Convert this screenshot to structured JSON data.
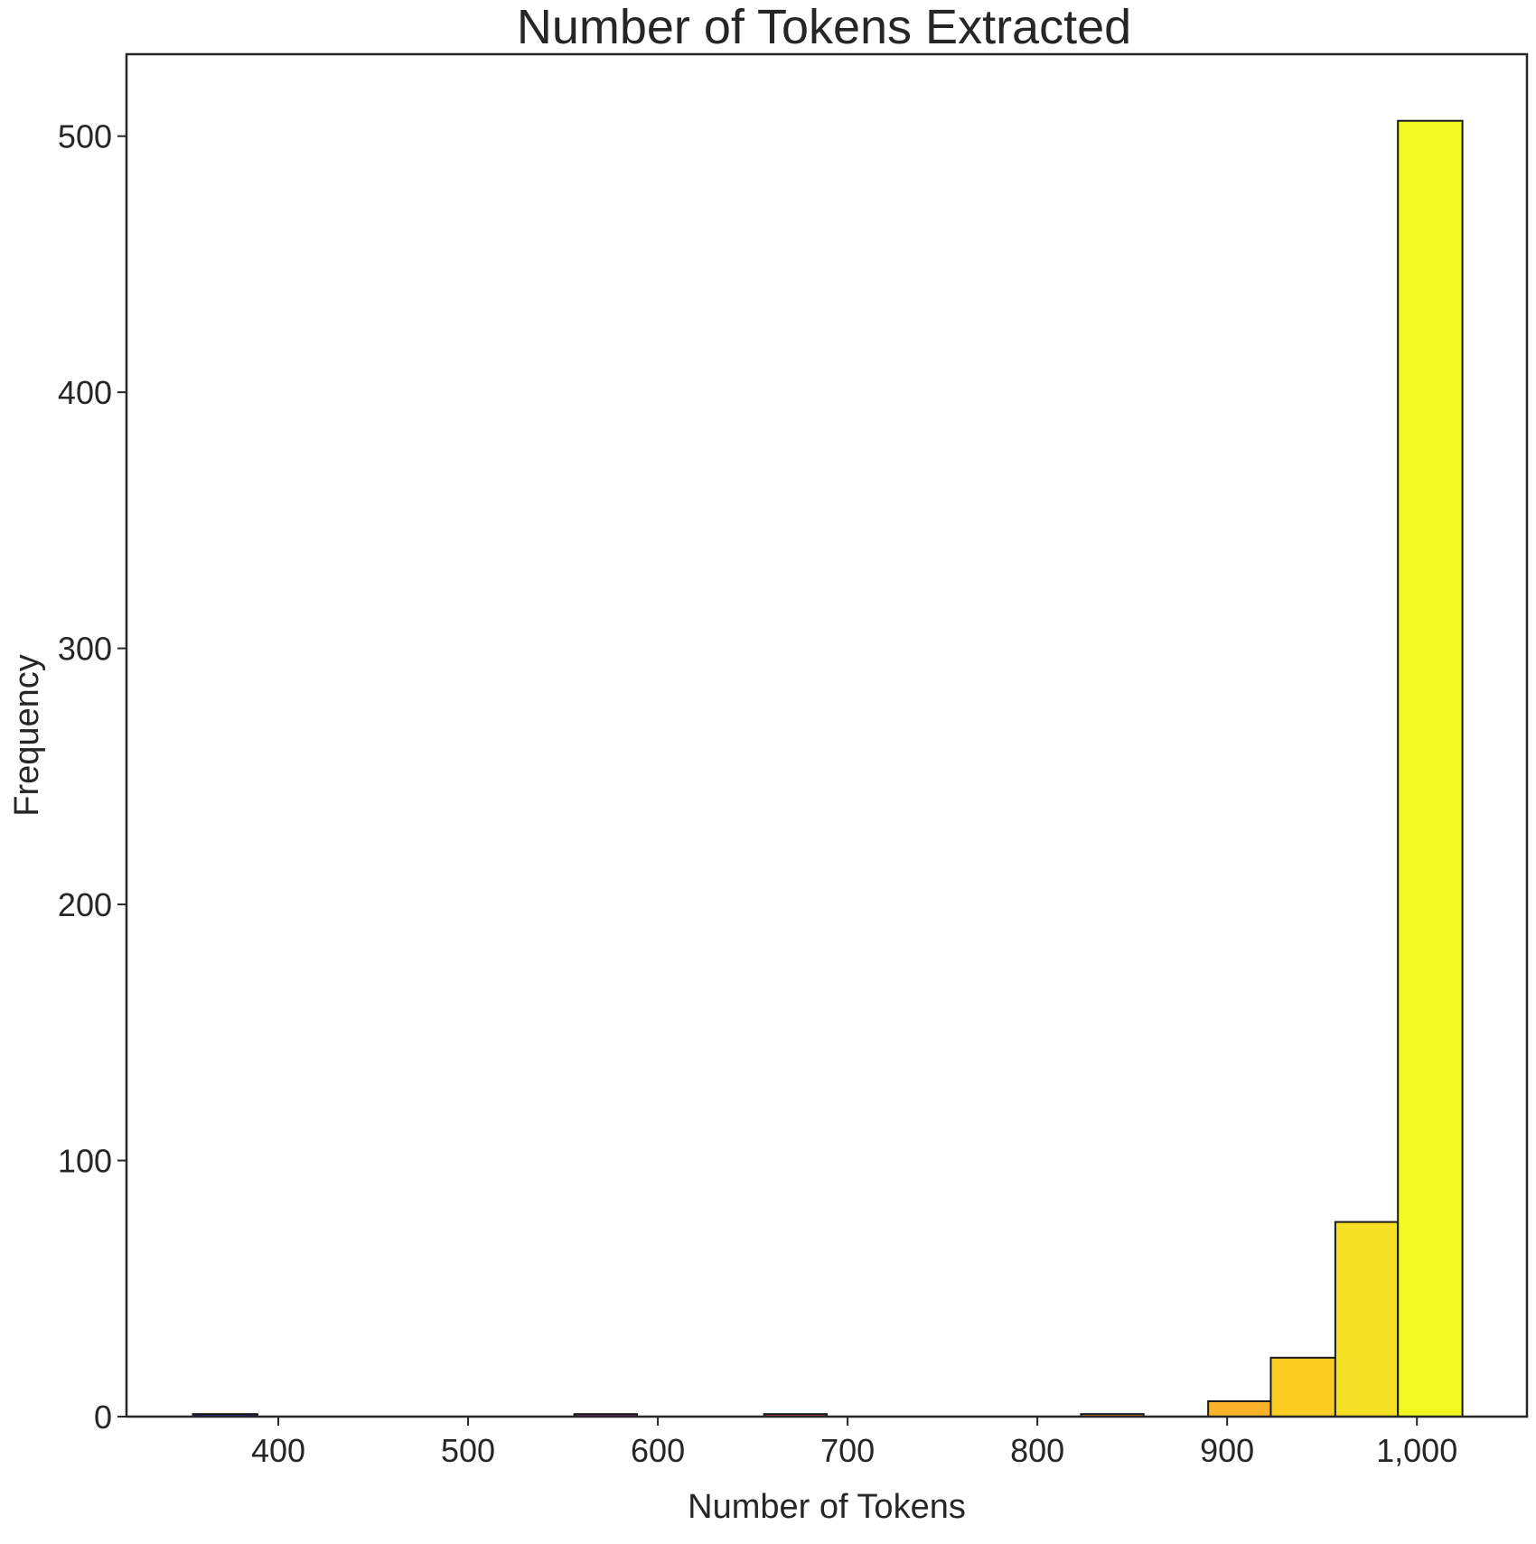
{
  "chart_data": {
    "type": "bar",
    "title": "Number of Tokens Extracted",
    "xlabel": "Number of Tokens",
    "ylabel": "Frequency",
    "xlim": [
      320,
      1058
    ],
    "ylim": [
      0,
      532
    ],
    "grid": false,
    "legend": "none",
    "x_ticks": [
      400,
      500,
      600,
      700,
      800,
      900,
      1000
    ],
    "x_tick_labels": [
      "400",
      "500",
      "600",
      "700",
      "800",
      "900",
      "1,000"
    ],
    "y_ticks": [
      0,
      100,
      200,
      300,
      400,
      500
    ],
    "y_tick_labels": [
      "0",
      "100",
      "200",
      "300",
      "400",
      "500"
    ],
    "bins": [
      {
        "x0": 355,
        "x1": 389,
        "count": 1,
        "color": "#1a1a8c"
      },
      {
        "x0": 556,
        "x1": 589,
        "count": 1,
        "color": "#8c2a8c"
      },
      {
        "x0": 656,
        "x1": 689,
        "count": 1,
        "color": "#c8435a"
      },
      {
        "x0": 823,
        "x1": 856,
        "count": 1,
        "color": "#f0902a"
      },
      {
        "x0": 890,
        "x1": 923,
        "count": 6,
        "color": "#f9b22a"
      },
      {
        "x0": 923,
        "x1": 957,
        "count": 23,
        "color": "#fccd25"
      },
      {
        "x0": 957,
        "x1": 990,
        "count": 76,
        "color": "#f5e024"
      },
      {
        "x0": 990,
        "x1": 1024,
        "count": 506,
        "color": "#f0f921"
      }
    ]
  }
}
